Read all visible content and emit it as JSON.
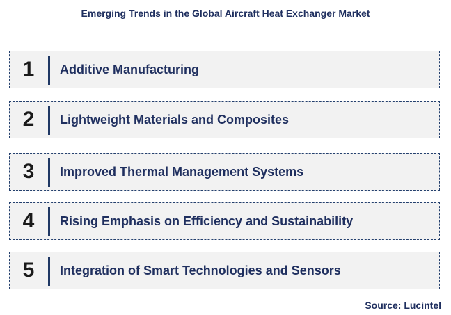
{
  "title": "Emerging Trends in the Global Aircraft Heat Exchanger Market",
  "trends": [
    {
      "number": "1",
      "label": "Additive Manufacturing"
    },
    {
      "number": "2",
      "label": "Lightweight Materials and Composites"
    },
    {
      "number": "3",
      "label": "Improved Thermal Management Systems"
    },
    {
      "number": "4",
      "label": "Rising Emphasis on Efficiency and Sustainability"
    },
    {
      "number": "5",
      "label": "Integration of Smart Technologies and Sensors"
    }
  ],
  "source": "Source: Lucintel",
  "colors": {
    "text_primary": "#1f2f5f",
    "divider": "#1f3864",
    "box_border": "#24406e",
    "box_fill": "#f2f2f2"
  }
}
